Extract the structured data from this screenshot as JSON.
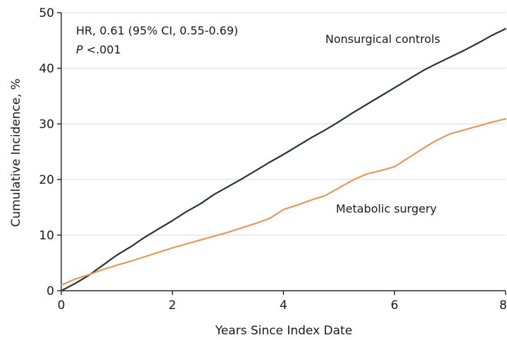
{
  "chart_data": {
    "type": "line",
    "title": "",
    "xlabel": "Years Since Index Date",
    "ylabel": "Cumulative Incidence, %",
    "xlim": [
      0,
      8
    ],
    "ylim": [
      0,
      50
    ],
    "xticks": [
      "0",
      "2",
      "4",
      "6",
      "8"
    ],
    "yticks": [
      "0",
      "10",
      "20",
      "30",
      "40",
      "50"
    ],
    "grid": true,
    "annotation": {
      "line1": "HR, 0.61 (95% CI, 0.55-0.69)",
      "line2_italic": "P",
      "line2_rest": " <.001"
    },
    "series": [
      {
        "name": "Nonsurgical controls",
        "color": "#2b3136",
        "x": [
          0,
          0.25,
          0.5,
          0.75,
          1,
          1.25,
          1.5,
          1.75,
          2,
          2.25,
          2.5,
          2.75,
          3,
          3.25,
          3.5,
          3.75,
          4,
          4.25,
          4.5,
          4.75,
          5,
          5.25,
          5.5,
          5.75,
          6,
          6.25,
          6.5,
          6.75,
          7,
          7.25,
          7.5,
          7.75,
          8
        ],
        "y": [
          0,
          1.3,
          2.8,
          4.6,
          6.4,
          7.9,
          9.6,
          11.1,
          12.6,
          14.2,
          15.6,
          17.3,
          18.7,
          20.1,
          21.6,
          23.1,
          24.5,
          26.0,
          27.5,
          28.9,
          30.4,
          32.0,
          33.5,
          35.0,
          36.5,
          38.0,
          39.5,
          40.8,
          42.0,
          43.2,
          44.5,
          45.9,
          47.1
        ]
      },
      {
        "name": "Metabolic surgery",
        "color": "#e39a5a",
        "x": [
          0,
          0.25,
          0.5,
          0.75,
          1,
          1.25,
          1.5,
          1.75,
          2,
          2.25,
          2.5,
          2.75,
          3,
          3.25,
          3.5,
          3.75,
          4,
          4.25,
          4.5,
          4.75,
          5,
          5.25,
          5.5,
          5.75,
          6,
          6.25,
          6.5,
          6.75,
          7,
          7.25,
          7.5,
          7.75,
          8
        ],
        "y": [
          1.0,
          2.1,
          2.9,
          3.8,
          4.6,
          5.3,
          6.1,
          6.9,
          7.7,
          8.4,
          9.1,
          9.8,
          10.5,
          11.3,
          12.1,
          13.0,
          14.6,
          15.4,
          16.3,
          17.1,
          18.5,
          19.9,
          21.0,
          21.6,
          22.3,
          23.9,
          25.5,
          27.0,
          28.2,
          28.9,
          29.6,
          30.3,
          30.9
        ]
      }
    ]
  }
}
